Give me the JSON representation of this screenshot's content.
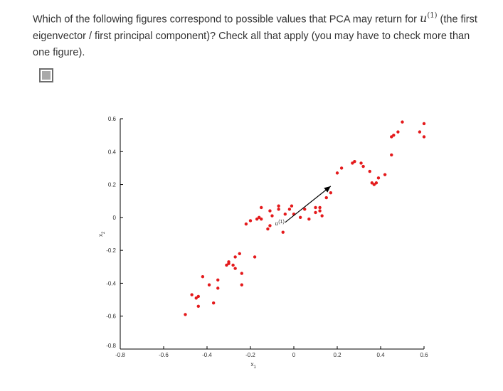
{
  "question": {
    "text_before": "Which of the following figures correspond to possible values that PCA may return for ",
    "math_symbol": "u",
    "math_sup": "(1)",
    "text_after": " (the first eigenvector / first principal component)? Check all that apply (you may have to check more than one figure)."
  },
  "checkbox": {
    "checked": true,
    "color": "#a9a9a9"
  },
  "chart_data": {
    "type": "scatter",
    "xlabel": "x1",
    "ylabel": "x2",
    "xlim": [
      -0.8,
      0.6
    ],
    "ylim": [
      -0.8,
      0.6
    ],
    "x_ticks": [
      "-0.8",
      "-0.6",
      "-0.4",
      "-0.2",
      "0",
      "0.2",
      "0.4",
      "0.6"
    ],
    "y_ticks": [
      "0.6",
      "0.4",
      "0.2",
      "0",
      "-0.2",
      "-0.4",
      "-0.6",
      "-0.8"
    ],
    "point_color": "#e41a1c",
    "points": [
      [
        -0.5,
        -0.59
      ],
      [
        -0.47,
        -0.47
      ],
      [
        -0.45,
        -0.49
      ],
      [
        -0.44,
        -0.48
      ],
      [
        -0.44,
        -0.54
      ],
      [
        -0.42,
        -0.36
      ],
      [
        -0.39,
        -0.41
      ],
      [
        -0.37,
        -0.52
      ],
      [
        -0.35,
        -0.38
      ],
      [
        -0.35,
        -0.43
      ],
      [
        -0.31,
        -0.29
      ],
      [
        -0.3,
        -0.27
      ],
      [
        -0.3,
        -0.28
      ],
      [
        -0.28,
        -0.29
      ],
      [
        -0.27,
        -0.31
      ],
      [
        -0.27,
        -0.24
      ],
      [
        -0.25,
        -0.22
      ],
      [
        -0.24,
        -0.41
      ],
      [
        -0.24,
        -0.34
      ],
      [
        -0.22,
        -0.04
      ],
      [
        -0.2,
        -0.02
      ],
      [
        -0.18,
        -0.24
      ],
      [
        -0.17,
        -0.01
      ],
      [
        -0.16,
        0.0
      ],
      [
        -0.15,
        0.06
      ],
      [
        -0.15,
        -0.01
      ],
      [
        -0.12,
        -0.07
      ],
      [
        -0.11,
        0.04
      ],
      [
        -0.11,
        -0.05
      ],
      [
        -0.1,
        0.01
      ],
      [
        -0.07,
        0.05
      ],
      [
        -0.07,
        0.07
      ],
      [
        -0.05,
        -0.09
      ],
      [
        -0.04,
        0.02
      ],
      [
        -0.02,
        0.05
      ],
      [
        -0.01,
        0.07
      ],
      [
        0.0,
        0.02
      ],
      [
        0.03,
        0.0
      ],
      [
        0.05,
        0.05
      ],
      [
        0.07,
        -0.01
      ],
      [
        0.1,
        0.03
      ],
      [
        0.1,
        0.06
      ],
      [
        0.12,
        0.06
      ],
      [
        0.12,
        0.04
      ],
      [
        0.13,
        0.01
      ],
      [
        0.15,
        0.12
      ],
      [
        0.17,
        0.15
      ],
      [
        0.2,
        0.27
      ],
      [
        0.22,
        0.3
      ],
      [
        0.27,
        0.33
      ],
      [
        0.28,
        0.34
      ],
      [
        0.31,
        0.33
      ],
      [
        0.32,
        0.31
      ],
      [
        0.35,
        0.28
      ],
      [
        0.36,
        0.21
      ],
      [
        0.37,
        0.2
      ],
      [
        0.38,
        0.21
      ],
      [
        0.39,
        0.24
      ],
      [
        0.42,
        0.26
      ],
      [
        0.45,
        0.38
      ],
      [
        0.45,
        0.49
      ],
      [
        0.46,
        0.5
      ],
      [
        0.48,
        0.52
      ],
      [
        0.5,
        0.58
      ],
      [
        0.58,
        0.52
      ],
      [
        0.6,
        0.57
      ],
      [
        0.6,
        0.49
      ]
    ],
    "arrow": {
      "label_base": "u",
      "label_sup": "(1)",
      "from": [
        -0.04,
        -0.03
      ],
      "to": [
        0.17,
        0.19
      ]
    }
  }
}
